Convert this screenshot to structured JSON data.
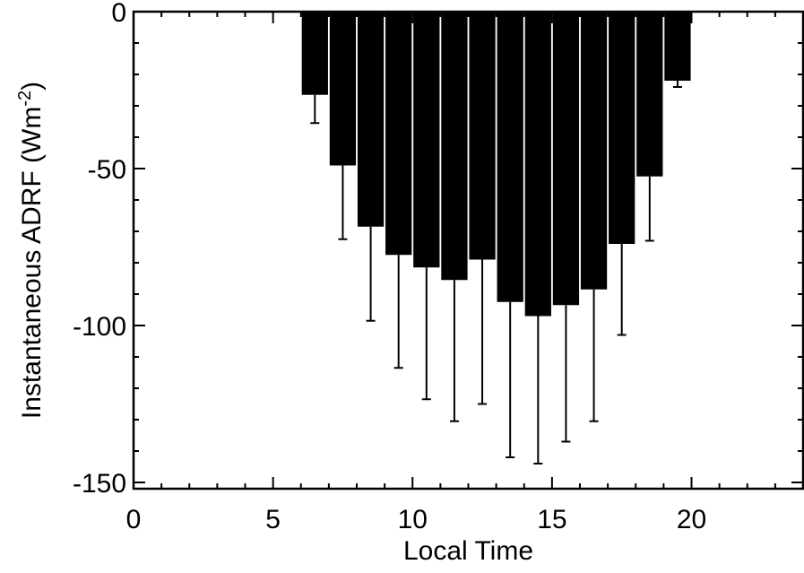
{
  "chart_data": {
    "type": "bar",
    "xlabel": "Local Time",
    "ylabel": "Instantaneous ADRF (Wm",
    "ylabel_superscript": "-2",
    "ylabel_suffix": ")",
    "xlim": [
      0,
      24
    ],
    "ylim": [
      -152,
      0
    ],
    "x_ticks": [
      0,
      5,
      10,
      15,
      20
    ],
    "x_tick_labels": [
      "0",
      "5",
      "10",
      "15",
      "20"
    ],
    "y_ticks": [
      0,
      -50,
      -100,
      -150
    ],
    "y_tick_labels": [
      "0",
      "-50",
      "-100",
      "-150"
    ],
    "grid": false,
    "bar_color": "#000000",
    "series": [
      {
        "x": [
          6.5,
          7.5,
          8.5,
          9.5,
          10.5,
          11.5,
          12.5,
          13.5,
          14.5,
          15.5,
          16.5,
          17.5,
          18.5,
          19.5
        ],
        "values": [
          -26.5,
          -49,
          -68.5,
          -77.5,
          -81.5,
          -85.5,
          -79,
          -92.5,
          -97,
          -93.5,
          -88.5,
          -74,
          -52.5,
          -22
        ],
        "error_low": [
          -35.5,
          -72.5,
          -98.5,
          -113.5,
          -123.5,
          -130.5,
          -125,
          -142,
          -144,
          -137,
          -130.5,
          -103,
          -73,
          -24
        ]
      }
    ]
  }
}
